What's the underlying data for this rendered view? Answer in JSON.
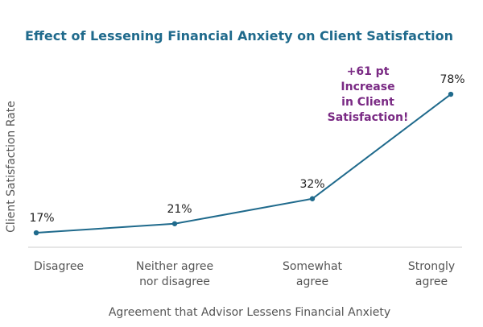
{
  "chart_data": {
    "type": "line",
    "title": "Effect of Lessening Financial Anxiety on Client Satisfaction",
    "xlabel": "Agreement that Advisor Lessens Financial Anxiety",
    "ylabel": "Client Satisfaction Rate",
    "categories": [
      [
        "Disagree"
      ],
      [
        "Neither agree",
        "nor disagree"
      ],
      [
        "Somewhat",
        "agree"
      ],
      [
        "Strongly",
        "agree"
      ]
    ],
    "series": [
      {
        "name": "Client Satisfaction Rate",
        "values": [
          17,
          21,
          32,
          78
        ],
        "labels": [
          "17%",
          "21%",
          "32%",
          "78%"
        ]
      }
    ],
    "ylim": [
      0,
      100
    ],
    "grid": false,
    "legend": "none",
    "annotation": {
      "lines": [
        "+61 pt",
        "Increase",
        "in Client",
        "Satisfaction!"
      ]
    },
    "colors": {
      "title": "#1f6a8c",
      "line": "#1f6a8c",
      "annotation": "#7a2a84",
      "axis": "#dddddd"
    }
  }
}
